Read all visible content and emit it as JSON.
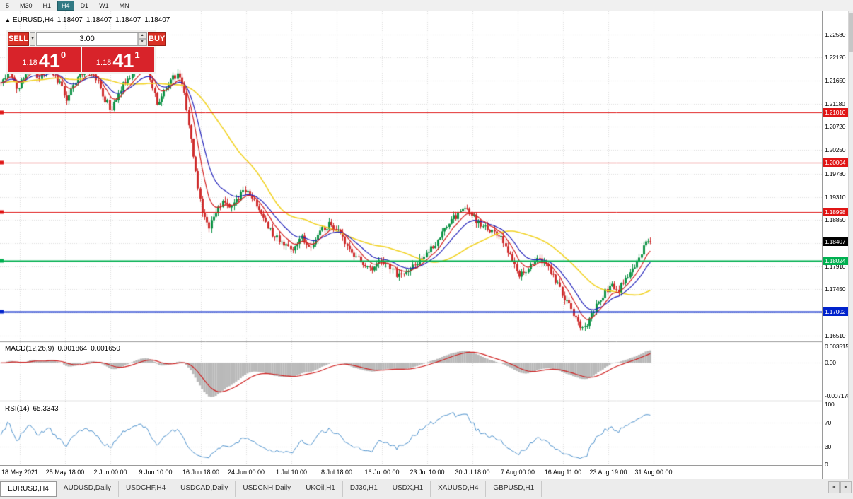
{
  "toolbar": {
    "timeframes": [
      {
        "label": "5",
        "active": false
      },
      {
        "label": "M30",
        "active": false
      },
      {
        "label": "H1",
        "active": false
      },
      {
        "label": "H4",
        "active": true
      },
      {
        "label": "D1",
        "active": false
      },
      {
        "label": "W1",
        "active": false
      },
      {
        "label": "MN",
        "active": false
      }
    ]
  },
  "chart_header": {
    "collapse_icon": "▲",
    "symbol_period": "EURUSD,H4",
    "open": "1.18407",
    "high": "1.18407",
    "low": "1.18407",
    "close": "1.18407"
  },
  "trade_panel": {
    "sell_label": "SELL",
    "buy_label": "BUY",
    "volume": "3.00",
    "icons": {
      "dropdown": "▼",
      "increase": "▲",
      "decrease": "▼"
    },
    "sell_price": {
      "big_figure": "1.18",
      "pips": "41",
      "pipette": "0"
    },
    "buy_price": {
      "big_figure": "1.18",
      "pips": "41",
      "pipette": "1"
    }
  },
  "chart_data": {
    "type": "candlestick",
    "symbol": "EURUSD",
    "timeframe": "H4",
    "price_range": {
      "top": 1.2296,
      "bottom": 1.1643
    },
    "price_axis_ticks": [
      "1.22580",
      "1.22120",
      "1.21650",
      "1.21180",
      "1.20720",
      "1.20250",
      "1.19780",
      "1.19310",
      "1.18850",
      "1.18380",
      "1.17910",
      "1.17450",
      "1.16980",
      "1.16510"
    ],
    "time_labels": [
      "18 May 2021",
      "25 May 18:00",
      "2 Jun 00:00",
      "9 Jun 10:00",
      "16 Jun 18:00",
      "24 Jun 00:00",
      "1 Jul 10:00",
      "8 Jul 18:00",
      "16 Jul 00:00",
      "23 Jul 10:00",
      "30 Jul 18:00",
      "7 Aug 00:00",
      "16 Aug 11:00",
      "23 Aug 19:00",
      "31 Aug 00:00"
    ],
    "price_path": [
      [
        0,
        1.216
      ],
      [
        12,
        1.2185
      ],
      [
        25,
        1.215
      ],
      [
        40,
        1.2192
      ],
      [
        55,
        1.2172
      ],
      [
        70,
        1.2188
      ],
      [
        85,
        1.2155
      ],
      [
        95,
        1.2125
      ],
      [
        105,
        1.2158
      ],
      [
        120,
        1.2188
      ],
      [
        135,
        1.2172
      ],
      [
        148,
        1.2128
      ],
      [
        158,
        1.2105
      ],
      [
        170,
        1.2148
      ],
      [
        185,
        1.2178
      ],
      [
        200,
        1.2195
      ],
      [
        212,
        1.2168
      ],
      [
        222,
        1.2118
      ],
      [
        232,
        1.2142
      ],
      [
        245,
        1.2172
      ],
      [
        255,
        1.2178
      ],
      [
        262,
        1.212
      ],
      [
        270,
        1.2042
      ],
      [
        278,
        1.1962
      ],
      [
        286,
        1.1902
      ],
      [
        295,
        1.1872
      ],
      [
        305,
        1.1898
      ],
      [
        315,
        1.1922
      ],
      [
        330,
        1.1912
      ],
      [
        343,
        1.1946
      ],
      [
        355,
        1.193
      ],
      [
        370,
        1.1892
      ],
      [
        385,
        1.1856
      ],
      [
        400,
        1.1842
      ],
      [
        412,
        1.182
      ],
      [
        425,
        1.1852
      ],
      [
        438,
        1.1828
      ],
      [
        452,
        1.1862
      ],
      [
        466,
        1.1876
      ],
      [
        480,
        1.1855
      ],
      [
        495,
        1.182
      ],
      [
        510,
        1.18
      ],
      [
        525,
        1.178
      ],
      [
        538,
        1.1802
      ],
      [
        552,
        1.179
      ],
      [
        566,
        1.1768
      ],
      [
        580,
        1.1788
      ],
      [
        595,
        1.1806
      ],
      [
        610,
        1.1828
      ],
      [
        625,
        1.1858
      ],
      [
        640,
        1.1886
      ],
      [
        655,
        1.1906
      ],
      [
        668,
        1.1894
      ],
      [
        680,
        1.1872
      ],
      [
        695,
        1.1862
      ],
      [
        708,
        1.1852
      ],
      [
        720,
        1.1812
      ],
      [
        733,
        1.1772
      ],
      [
        748,
        1.1792
      ],
      [
        762,
        1.1806
      ],
      [
        778,
        1.178
      ],
      [
        792,
        1.1742
      ],
      [
        806,
        1.1706
      ],
      [
        818,
        1.1672
      ],
      [
        828,
        1.1668
      ],
      [
        838,
        1.17
      ],
      [
        850,
        1.173
      ],
      [
        862,
        1.1752
      ],
      [
        874,
        1.1742
      ],
      [
        886,
        1.1772
      ],
      [
        898,
        1.1792
      ],
      [
        908,
        1.1822
      ],
      [
        916,
        1.1842
      ],
      [
        922,
        1.18407
      ]
    ],
    "levels": [
      {
        "value": 1.2101,
        "label": "1.21010",
        "color": "#e01515",
        "width": 1
      },
      {
        "value": 1.20004,
        "label": "1.20004",
        "color": "#e01515",
        "width": 1
      },
      {
        "value": 1.18998,
        "label": "1.18998",
        "color": "#e01515",
        "width": 1
      },
      {
        "value": 1.18024,
        "label": "1.18024",
        "color": "#00b050",
        "width": 2
      },
      {
        "value": 1.17002,
        "label": "1.17002",
        "color": "#0022cc",
        "width": 2
      }
    ],
    "current_price": {
      "value": 1.18407,
      "label": "1.18407",
      "color": "#000000"
    },
    "colors": {
      "up": "#0f9447",
      "down": "#cf2e2e",
      "ma_fast": "#d42020",
      "ma_medium": "#2222bb",
      "ma_slow": "#f2d324",
      "macd_hist": "#b9b9b9",
      "macd_signal": "#d02020",
      "rsi_line": "#4f93ce",
      "grid": "#dcdcdc"
    },
    "indicators": {
      "macd": {
        "label": "MACD(12,26,9)",
        "value_main": "0.001864",
        "value_signal": "0.001650",
        "axis": [
          "0.003515",
          "0.00",
          "-0.007178"
        ],
        "params": [
          12,
          26,
          9
        ]
      },
      "rsi": {
        "label": "RSI(14)",
        "value": "65.3343",
        "axis": [
          "100",
          "70",
          "30",
          "0"
        ],
        "levels": [
          70,
          30
        ],
        "period": 14
      }
    }
  },
  "tab_bar": {
    "tabs": [
      {
        "label": "EURUSD,H4",
        "active": true
      },
      {
        "label": "AUDUSD,Daily",
        "active": false
      },
      {
        "label": "USDCHF,H4",
        "active": false
      },
      {
        "label": "USDCAD,Daily",
        "active": false
      },
      {
        "label": "USDCNH,Daily",
        "active": false
      },
      {
        "label": "UKOil,H1",
        "active": false
      },
      {
        "label": "DJ30,H1",
        "active": false
      },
      {
        "label": "USDX,H1",
        "active": false
      },
      {
        "label": "XAUUSD,H4",
        "active": false
      },
      {
        "label": "GBPUSD,H1",
        "active": false
      }
    ],
    "nav_left": "◄",
    "nav_right": "►"
  }
}
